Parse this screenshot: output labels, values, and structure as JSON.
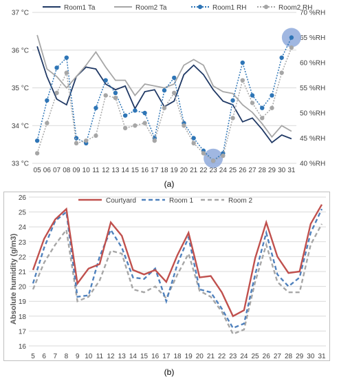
{
  "charts": [
    {
      "caption": "(a)",
      "chart_data": {
        "type": "line",
        "title": "",
        "xlabel": "",
        "ylabel": "",
        "categories": [
          "05",
          "06",
          "07",
          "08",
          "09",
          "10",
          "11",
          "12",
          "13",
          "14",
          "15",
          "16",
          "17",
          "18",
          "19",
          "20",
          "21",
          "22",
          "23",
          "24",
          "25",
          "26",
          "27",
          "28",
          "29",
          "30",
          "31"
        ],
        "y_left": {
          "min": 33,
          "max": 37,
          "step": 1,
          "ticks": [
            "33 °C",
            "34 °C",
            "35 °C",
            "36 °C",
            "37 °C"
          ]
        },
        "y_right": {
          "min": 40,
          "max": 70,
          "step": 5,
          "ticks": [
            "40 %RH",
            "45 %RH",
            "50 %RH",
            "55 %RH",
            "60 %RH",
            "65 %RH",
            "70 %RH"
          ]
        },
        "legend_position": "top",
        "series": [
          {
            "name": "Room1 Ta",
            "axis": "left",
            "style": "solid",
            "color": "#1f3864",
            "values": [
              36.1,
              35.3,
              34.7,
              34.55,
              35.3,
              35.55,
              35.5,
              35.1,
              34.95,
              35.05,
              34.45,
              34.9,
              34.95,
              34.5,
              34.65,
              35.35,
              35.6,
              35.35,
              34.95,
              34.65,
              34.55,
              34.1,
              34.2,
              33.9,
              33.55,
              33.75,
              33.65
            ]
          },
          {
            "name": "Room2 Ta",
            "axis": "left",
            "style": "solid",
            "color": "#a6a6a6",
            "values": [
              36.4,
              35.5,
              35.3,
              35.0,
              35.3,
              35.6,
              35.95,
              35.55,
              35.2,
              35.2,
              34.8,
              35.1,
              35.05,
              35.0,
              35.1,
              35.6,
              35.75,
              35.6,
              35.05,
              34.9,
              34.85,
              34.55,
              34.35,
              34.05,
              33.7,
              34.0,
              33.85
            ]
          },
          {
            "name": "Room1 RH",
            "axis": "right",
            "style": "dotted",
            "color": "#2e75b6",
            "values": [
              44.5,
              52.5,
              59.0,
              61.0,
              45.0,
              44.0,
              51.0,
              56.5,
              54.0,
              49.5,
              50.5,
              50.0,
              45.0,
              54.5,
              57.0,
              48.0,
              45.0,
              42.5,
              40.5,
              42.0,
              52.5,
              60.0,
              53.5,
              51.0,
              53.5,
              61.0,
              65.0
            ]
          },
          {
            "name": "Room2 RH",
            "axis": "right",
            "style": "dotted",
            "color": "#a6a6a6",
            "values": [
              42.0,
              48.0,
              54.0,
              58.0,
              44.0,
              44.5,
              45.5,
              53.5,
              53.0,
              47.0,
              47.5,
              48.0,
              44.5,
              51.0,
              54.0,
              47.5,
              44.0,
              42.0,
              40.5,
              41.5,
              49.0,
              56.5,
              52.0,
              49.0,
              51.0,
              58.0,
              63.0
            ]
          }
        ],
        "highlights": [
          {
            "category": "23",
            "axis": "right",
            "value": 41.0,
            "color": "#8faadc"
          },
          {
            "category": "31",
            "axis": "right",
            "value": 65.0,
            "color": "#8faadc"
          }
        ]
      }
    },
    {
      "caption": "(b)",
      "chart_data": {
        "type": "line",
        "title": "",
        "xlabel": "",
        "ylabel": "Absolute humidity  (g/m3)",
        "categories": [
          "5",
          "6",
          "7",
          "8",
          "9",
          "10",
          "11",
          "12",
          "13",
          "14",
          "15",
          "16",
          "17",
          "18",
          "19",
          "20",
          "21",
          "22",
          "23",
          "24",
          "25",
          "26",
          "27",
          "28",
          "29",
          "30",
          "31"
        ],
        "ylim": [
          16,
          26
        ],
        "y_ticks": [
          "16",
          "17",
          "18",
          "19",
          "20",
          "21",
          "22",
          "23",
          "24",
          "25",
          "26"
        ],
        "legend_position": "top-center",
        "grid": true,
        "series": [
          {
            "name": "Courtyard",
            "style": "solid",
            "color": "#c0504d",
            "values": [
              21.1,
              23.2,
              24.5,
              25.2,
              20.2,
              21.2,
              21.5,
              24.3,
              23.4,
              21.1,
              20.8,
              21.1,
              20.3,
              22.1,
              23.6,
              20.6,
              20.7,
              19.6,
              18.0,
              18.4,
              21.9,
              24.3,
              22.0,
              20.9,
              21.0,
              24.2,
              25.5
            ]
          },
          {
            "name": "Room 1",
            "style": "dashed",
            "color": "#4f81bd",
            "values": [
              20.2,
              22.6,
              24.4,
              25.0,
              19.3,
              19.4,
              22.0,
              23.8,
              22.6,
              20.6,
              20.5,
              21.2,
              19.0,
              21.5,
              23.3,
              19.8,
              19.6,
              18.5,
              17.2,
              17.5,
              20.8,
              23.6,
              20.8,
              20.0,
              20.6,
              23.6,
              25.2
            ]
          },
          {
            "name": "Room 2",
            "style": "dashed",
            "color": "#a6a6a6",
            "values": [
              19.8,
              21.6,
              22.8,
              23.8,
              19.0,
              19.3,
              20.4,
              22.4,
              22.2,
              19.8,
              19.6,
              20.0,
              19.2,
              20.8,
              22.2,
              19.7,
              19.3,
              18.3,
              16.8,
              17.1,
              20.3,
              22.8,
              20.3,
              19.6,
              19.6,
              22.8,
              24.2
            ]
          }
        ]
      }
    }
  ]
}
